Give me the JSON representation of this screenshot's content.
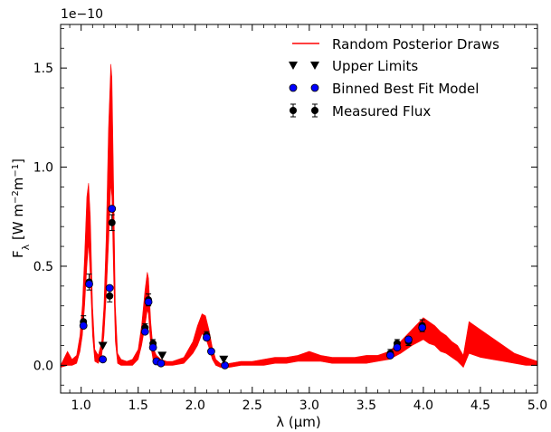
{
  "chart_data": {
    "type": "line",
    "x_label": "λ (μm)",
    "y_label": "F",
    "y_label_sub": "λ",
    "y_label_unit": " [W m",
    "y_exp_prefix": "−2",
    "y_unit_mid": "m",
    "y_exp_suffix": "−1",
    "y_unit_end": "]",
    "offset_text": "1e−10",
    "xlim": [
      0.82,
      5.0
    ],
    "ylim": [
      -0.14,
      1.72
    ],
    "x_ticks": [
      1.0,
      1.5,
      2.0,
      2.5,
      3.0,
      3.5,
      4.0,
      4.5,
      5.0
    ],
    "x_tick_labels": [
      "1.0",
      "1.5",
      "2.0",
      "2.5",
      "3.0",
      "3.5",
      "4.0",
      "4.5",
      "5.0"
    ],
    "y_ticks": [
      0.0,
      0.5,
      1.0,
      1.5
    ],
    "y_tick_labels": [
      "0.0",
      "0.5",
      "1.0",
      "1.5"
    ],
    "legend": {
      "placement": "top-right",
      "entries": [
        {
          "label": "Random Posterior Draws",
          "marker": "line",
          "color": "#ff0000"
        },
        {
          "label": "Upper Limits",
          "marker": "triangle-down",
          "color": "#000000"
        },
        {
          "label": "Binned Best Fit Model",
          "marker": "circle",
          "color": "#0000ff"
        },
        {
          "label": "Measured Flux",
          "marker": "errorbar",
          "color": "#000000"
        }
      ]
    },
    "model_band": {
      "color": "#ff0000",
      "x": [
        0.82,
        0.88,
        0.92,
        0.96,
        0.99,
        1.01,
        1.03,
        1.05,
        1.065,
        1.08,
        1.1,
        1.12,
        1.15,
        1.18,
        1.2,
        1.22,
        1.24,
        1.26,
        1.27,
        1.285,
        1.3,
        1.32,
        1.35,
        1.4,
        1.45,
        1.5,
        1.53,
        1.56,
        1.58,
        1.59,
        1.61,
        1.63,
        1.66,
        1.7,
        1.75,
        1.8,
        1.9,
        1.98,
        2.02,
        2.06,
        2.09,
        2.12,
        2.15,
        2.18,
        2.22,
        2.26,
        2.3,
        2.4,
        2.5,
        2.6,
        2.7,
        2.8,
        2.9,
        3.0,
        3.1,
        3.2,
        3.3,
        3.4,
        3.5,
        3.6,
        3.7,
        3.8,
        3.9,
        4.0,
        4.05,
        4.1,
        4.15,
        4.2,
        4.25,
        4.3,
        4.35,
        4.4,
        4.5,
        4.6,
        4.7,
        4.8,
        4.9,
        5.0
      ],
      "upper": [
        0.0,
        0.07,
        0.03,
        0.05,
        0.15,
        0.3,
        0.55,
        0.85,
        0.92,
        0.75,
        0.3,
        0.08,
        0.05,
        0.12,
        0.3,
        0.65,
        1.2,
        1.52,
        1.45,
        0.9,
        0.3,
        0.06,
        0.03,
        0.02,
        0.03,
        0.08,
        0.2,
        0.38,
        0.47,
        0.44,
        0.22,
        0.09,
        0.05,
        0.03,
        0.02,
        0.02,
        0.04,
        0.12,
        0.2,
        0.26,
        0.25,
        0.18,
        0.09,
        0.03,
        0.01,
        0.0,
        0.01,
        0.02,
        0.02,
        0.03,
        0.04,
        0.04,
        0.05,
        0.07,
        0.05,
        0.04,
        0.04,
        0.04,
        0.05,
        0.05,
        0.07,
        0.12,
        0.18,
        0.24,
        0.22,
        0.2,
        0.17,
        0.15,
        0.12,
        0.1,
        0.05,
        0.22,
        0.18,
        0.14,
        0.1,
        0.06,
        0.04,
        0.02
      ],
      "lower": [
        -0.01,
        0.0,
        0.0,
        0.01,
        0.07,
        0.15,
        0.3,
        0.5,
        0.62,
        0.45,
        0.15,
        0.02,
        0.01,
        0.05,
        0.15,
        0.35,
        0.62,
        0.92,
        0.85,
        0.45,
        0.12,
        0.01,
        0.0,
        0.0,
        0.0,
        0.03,
        0.1,
        0.2,
        0.28,
        0.26,
        0.1,
        0.03,
        0.01,
        0.0,
        0.0,
        0.0,
        0.01,
        0.06,
        0.1,
        0.16,
        0.14,
        0.09,
        0.03,
        0.0,
        -0.01,
        -0.01,
        -0.01,
        0.0,
        0.0,
        0.0,
        0.01,
        0.01,
        0.02,
        0.02,
        0.02,
        0.01,
        0.01,
        0.01,
        0.01,
        0.02,
        0.03,
        0.06,
        0.1,
        0.13,
        0.11,
        0.1,
        0.07,
        0.06,
        0.04,
        0.02,
        -0.01,
        0.06,
        0.04,
        0.03,
        0.02,
        0.01,
        0.0,
        0.0
      ]
    },
    "upper_limits": {
      "color": "#000000",
      "x": [
        1.19,
        1.71,
        2.25
      ],
      "y": [
        0.1,
        0.05,
        0.03
      ]
    },
    "binned_model": {
      "color": "#0000ff",
      "x": [
        1.02,
        1.07,
        1.19,
        1.25,
        1.27,
        1.56,
        1.59,
        1.63,
        1.66,
        1.7,
        2.1,
        2.14,
        2.26,
        3.71,
        3.77,
        3.87,
        3.99
      ],
      "y": [
        0.2,
        0.41,
        0.03,
        0.39,
        0.79,
        0.17,
        0.32,
        0.09,
        0.02,
        0.01,
        0.14,
        0.07,
        0.0,
        0.05,
        0.09,
        0.13,
        0.19
      ]
    },
    "measured_flux": {
      "color": "#000000",
      "x": [
        1.02,
        1.07,
        1.25,
        1.27,
        1.56,
        1.59,
        1.63,
        2.1,
        3.71,
        3.77,
        3.87,
        3.99
      ],
      "y": [
        0.22,
        0.42,
        0.35,
        0.72,
        0.19,
        0.33,
        0.11,
        0.15,
        0.06,
        0.11,
        0.12,
        0.2
      ],
      "err": [
        0.03,
        0.04,
        0.03,
        0.04,
        0.02,
        0.03,
        0.02,
        0.02,
        0.02,
        0.02,
        0.02,
        0.03
      ]
    }
  }
}
